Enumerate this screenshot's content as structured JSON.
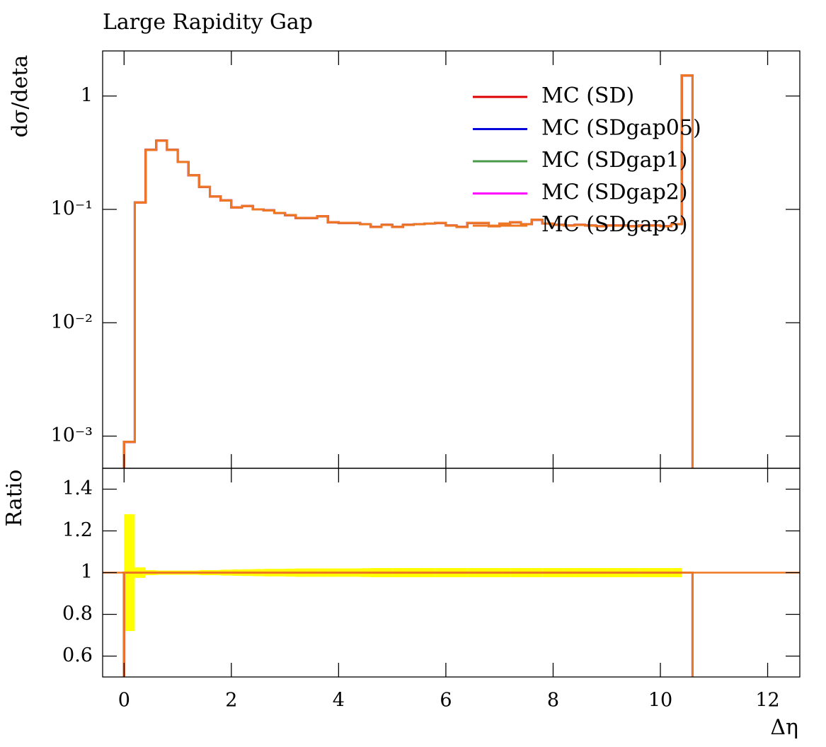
{
  "chart_data": [
    {
      "type": "histogram",
      "title": "Large Rapidity Gap",
      "ylabel": "dσ/deta",
      "xlim": [
        -0.4,
        12.6
      ],
      "ylim": [
        0.00052,
        2.5
      ],
      "log_y": true,
      "legend": "upper right",
      "yticks": [
        {
          "value": 0.001,
          "label": "10⁻³"
        },
        {
          "value": 0.01,
          "label": "10⁻²"
        },
        {
          "value": 0.1,
          "label": "10⁻¹"
        },
        1
      ],
      "bins": [
        0,
        0.2,
        0.4,
        0.6,
        0.8,
        1,
        1.2,
        1.4,
        1.6,
        1.8,
        2,
        2.2,
        2.4,
        2.6,
        2.8,
        3,
        3.2,
        3.4,
        3.6,
        3.8,
        4,
        4.2,
        4.4,
        4.6,
        4.8,
        5,
        5.2,
        5.4,
        5.6,
        5.8,
        6,
        6.2,
        6.4,
        6.6,
        6.8,
        7,
        7.2,
        7.4,
        7.6,
        7.8,
        8,
        8.2,
        8.4,
        8.6,
        8.8,
        9,
        9.2,
        9.4,
        9.6,
        9.8,
        10,
        10.2,
        10.4,
        10.6
      ],
      "series": [
        {
          "name": "MC (SD)",
          "color": "#dd0000",
          "values": [
            0.00089,
            0.115,
            0.335,
            0.404,
            0.335,
            0.262,
            0.2,
            0.158,
            0.13,
            0.12,
            0.104,
            0.107,
            0.1,
            0.098,
            0.093,
            0.089,
            0.084,
            0.084,
            0.087,
            0.077,
            0.076,
            0.076,
            0.074,
            0.07,
            0.073,
            0.07,
            0.073,
            0.074,
            0.075,
            0.076,
            0.072,
            0.07,
            0.076,
            0.076,
            0.071,
            0.075,
            0.077,
            0.074,
            0.081,
            0.075,
            0.073,
            0.072,
            0.073,
            0.072,
            0.071,
            0.072,
            0.072,
            0.071,
            0.072,
            0.072,
            0.071,
            0.074,
            1.52
          ]
        },
        {
          "name": "MC (SDgap05)",
          "color": "#0000dd",
          "values": [
            0.00089,
            0.115,
            0.335,
            0.404,
            0.335,
            0.262,
            0.2,
            0.158,
            0.13,
            0.12,
            0.104,
            0.107,
            0.1,
            0.098,
            0.093,
            0.089,
            0.084,
            0.084,
            0.087,
            0.077,
            0.076,
            0.076,
            0.074,
            0.07,
            0.073,
            0.07,
            0.073,
            0.074,
            0.075,
            0.076,
            0.072,
            0.07,
            0.076,
            0.076,
            0.071,
            0.075,
            0.077,
            0.074,
            0.081,
            0.075,
            0.073,
            0.072,
            0.073,
            0.072,
            0.071,
            0.072,
            0.072,
            0.071,
            0.072,
            0.072,
            0.071,
            0.074,
            1.52
          ]
        },
        {
          "name": "MC (SDgap1)",
          "color": "#4a9a4a",
          "values": [
            0.00089,
            0.115,
            0.335,
            0.404,
            0.335,
            0.262,
            0.2,
            0.158,
            0.13,
            0.12,
            0.104,
            0.107,
            0.1,
            0.098,
            0.093,
            0.089,
            0.084,
            0.084,
            0.087,
            0.077,
            0.076,
            0.076,
            0.074,
            0.07,
            0.073,
            0.07,
            0.073,
            0.074,
            0.075,
            0.076,
            0.072,
            0.07,
            0.076,
            0.076,
            0.071,
            0.075,
            0.077,
            0.074,
            0.081,
            0.075,
            0.073,
            0.072,
            0.073,
            0.072,
            0.071,
            0.072,
            0.072,
            0.071,
            0.072,
            0.072,
            0.071,
            0.074,
            1.52
          ]
        },
        {
          "name": "MC (SDgap2)",
          "color": "#ff00ff",
          "values": [
            0.00089,
            0.115,
            0.335,
            0.404,
            0.335,
            0.262,
            0.2,
            0.158,
            0.13,
            0.12,
            0.104,
            0.107,
            0.1,
            0.098,
            0.093,
            0.089,
            0.084,
            0.084,
            0.087,
            0.077,
            0.076,
            0.076,
            0.074,
            0.07,
            0.073,
            0.07,
            0.073,
            0.074,
            0.075,
            0.076,
            0.072,
            0.07,
            0.076,
            0.076,
            0.071,
            0.075,
            0.077,
            0.074,
            0.081,
            0.075,
            0.073,
            0.072,
            0.073,
            0.072,
            0.071,
            0.072,
            0.072,
            0.071,
            0.072,
            0.072,
            0.071,
            0.074,
            1.52
          ]
        },
        {
          "name": "MC (SDgap3)",
          "color": "#ee7722",
          "values": [
            0.00089,
            0.115,
            0.335,
            0.404,
            0.335,
            0.262,
            0.2,
            0.158,
            0.13,
            0.12,
            0.104,
            0.107,
            0.1,
            0.098,
            0.093,
            0.089,
            0.084,
            0.084,
            0.087,
            0.077,
            0.076,
            0.076,
            0.074,
            0.07,
            0.073,
            0.07,
            0.073,
            0.074,
            0.075,
            0.076,
            0.072,
            0.07,
            0.076,
            0.076,
            0.071,
            0.075,
            0.077,
            0.074,
            0.081,
            0.075,
            0.073,
            0.072,
            0.073,
            0.072,
            0.071,
            0.072,
            0.072,
            0.071,
            0.072,
            0.072,
            0.071,
            0.074,
            1.52
          ]
        }
      ]
    },
    {
      "type": "histogram",
      "ylabel": "Ratio",
      "xlabel": "Δη",
      "xlim": [
        -0.4,
        12.6
      ],
      "xticks": [
        0,
        2,
        4,
        6,
        8,
        10,
        12
      ],
      "ylim": [
        0.5,
        1.5
      ],
      "yticks": [
        0.6,
        0.8,
        1,
        1.2,
        1.4
      ],
      "reference": 1,
      "bins": [
        0,
        0.2,
        0.4,
        0.6,
        0.8,
        1,
        1.2,
        1.4,
        1.6,
        1.8,
        2,
        2.2,
        2.4,
        2.6,
        2.8,
        3,
        3.2,
        3.4,
        3.6,
        3.8,
        4,
        4.2,
        4.4,
        4.6,
        4.8,
        5,
        5.2,
        5.4,
        5.6,
        5.8,
        6,
        6.2,
        6.4,
        6.6,
        6.8,
        7,
        7.2,
        7.4,
        7.6,
        7.8,
        8,
        8.2,
        8.4,
        8.6,
        8.8,
        9,
        9.2,
        9.4,
        9.6,
        9.8,
        10,
        10.2,
        10.4,
        10.6
      ],
      "band": {
        "color": "#ffff00",
        "values": [
          1,
          1,
          1,
          1,
          1,
          1,
          1,
          1,
          1,
          1,
          1,
          1,
          1,
          1,
          1,
          1,
          1,
          1,
          1,
          1,
          1,
          1,
          1,
          1,
          1,
          1,
          1,
          1,
          1,
          1,
          1,
          1,
          1,
          1,
          1,
          1,
          1,
          1,
          1,
          1,
          1,
          1,
          1,
          1,
          1,
          1,
          1,
          1,
          1,
          1,
          1,
          1,
          1
        ],
        "errors": [
          0.28,
          0.025,
          0.012,
          0.01,
          0.01,
          0.01,
          0.01,
          0.012,
          0.012,
          0.014,
          0.015,
          0.016,
          0.017,
          0.018,
          0.018,
          0.019,
          0.02,
          0.02,
          0.02,
          0.02,
          0.02,
          0.02,
          0.021,
          0.022,
          0.022,
          0.022,
          0.022,
          0.022,
          0.022,
          0.022,
          0.022,
          0.022,
          0.022,
          0.022,
          0.022,
          0.022,
          0.022,
          0.022,
          0.022,
          0.022,
          0.022,
          0.022,
          0.022,
          0.022,
          0.022,
          0.022,
          0.022,
          0.022,
          0.022,
          0.022,
          0.022,
          0.022,
          0.005
        ]
      },
      "series": [
        {
          "color": "#dd0000",
          "values": [
            1,
            1,
            1,
            1,
            1,
            1,
            1,
            1,
            1,
            1,
            1,
            1,
            1,
            1,
            1,
            1,
            1,
            1,
            1,
            1,
            1,
            1,
            1,
            1,
            1,
            1,
            1,
            1,
            1,
            1,
            1,
            1,
            1,
            1,
            1,
            1,
            1,
            1,
            1,
            1,
            1,
            1,
            1,
            1,
            1,
            1,
            1,
            1,
            1,
            1,
            1,
            1,
            1
          ]
        },
        {
          "color": "#0000dd",
          "values": [
            1,
            1,
            1,
            1,
            1,
            1,
            1,
            1,
            1,
            1,
            1,
            1,
            1,
            1,
            1,
            1,
            1,
            1,
            1,
            1,
            1,
            1,
            1,
            1,
            1,
            1,
            1,
            1,
            1,
            1,
            1,
            1,
            1,
            1,
            1,
            1,
            1,
            1,
            1,
            1,
            1,
            1,
            1,
            1,
            1,
            1,
            1,
            1,
            1,
            1,
            1,
            1,
            1
          ]
        },
        {
          "color": "#4a9a4a",
          "values": [
            1,
            1,
            1,
            1,
            1,
            1,
            1,
            1,
            1,
            1,
            1,
            1,
            1,
            1,
            1,
            1,
            1,
            1,
            1,
            1,
            1,
            1,
            1,
            1,
            1,
            1,
            1,
            1,
            1,
            1,
            1,
            1,
            1,
            1,
            1,
            1,
            1,
            1,
            1,
            1,
            1,
            1,
            1,
            1,
            1,
            1,
            1,
            1,
            1,
            1,
            1,
            1,
            1
          ]
        },
        {
          "color": "#ff00ff",
          "values": [
            1,
            1,
            1,
            1,
            1,
            1,
            1,
            1,
            1,
            1,
            1,
            1,
            1,
            1,
            1,
            1,
            1,
            1,
            1,
            1,
            1,
            1,
            1,
            1,
            1,
            1,
            1,
            1,
            1,
            1,
            1,
            1,
            1,
            1,
            1,
            1,
            1,
            1,
            1,
            1,
            1,
            1,
            1,
            1,
            1,
            1,
            1,
            1,
            1,
            1,
            1,
            1,
            1
          ]
        },
        {
          "color": "#ee7722",
          "values": [
            1,
            1,
            1,
            1,
            1,
            1,
            1,
            1,
            1,
            1,
            1,
            1,
            1,
            1,
            1,
            1,
            1,
            1,
            1,
            1,
            1,
            1,
            1,
            1,
            1,
            1,
            1,
            1,
            1,
            1,
            1,
            1,
            1,
            1,
            1,
            1,
            1,
            1,
            1,
            1,
            1,
            1,
            1,
            1,
            1,
            1,
            1,
            1,
            1,
            1,
            1,
            1,
            1
          ]
        }
      ]
    }
  ]
}
